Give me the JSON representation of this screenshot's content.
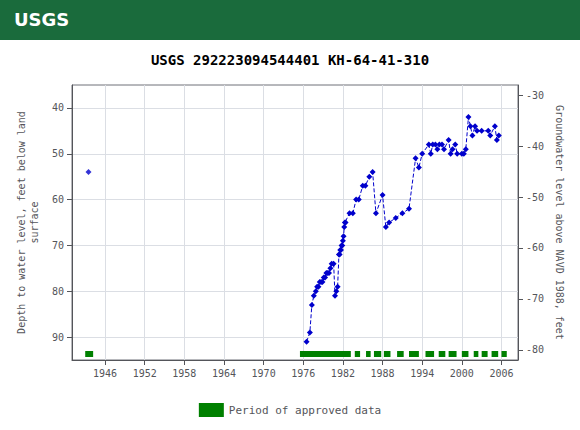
{
  "chart_data": {
    "type": "line",
    "title": "USGS 292223094544401 KH-64-41-310",
    "annotations": [
      "USGS"
    ],
    "ylabel": "Depth to water level, feet below land\nsurface",
    "y2label": "Groundwater level above NAVD 1988, feet",
    "xlim": [
      1941.0,
      2008.5
    ],
    "xticks": [
      1946,
      1952,
      1958,
      1964,
      1970,
      1976,
      1982,
      1988,
      1994,
      2000,
      2006
    ],
    "ylim": [
      95,
      35
    ],
    "yticks": [
      40,
      50,
      60,
      70,
      80,
      90
    ],
    "y2lim": [
      -82,
      -28
    ],
    "y2ticks": [
      -30,
      -40,
      -50,
      -60,
      -70,
      -80
    ],
    "grid": true,
    "legend": "bottom",
    "series": [
      {
        "type": "scatter",
        "color": "#0000cc",
        "marker": "diamond",
        "line_style": "none",
        "x": [
          1943.5
        ],
        "values": [
          54
        ]
      },
      {
        "type": "line",
        "color": "#0000cc",
        "marker": "diamond",
        "line_style": "dashed",
        "x": [
          1976.5,
          1977.0,
          1977.3,
          1977.6,
          1977.9,
          1978.1,
          1978.3,
          1978.5,
          1978.7,
          1978.9,
          1979.1,
          1979.3,
          1979.5,
          1979.7,
          1979.9,
          1980.1,
          1980.3,
          1980.6,
          1980.8,
          1981.0,
          1981.2,
          1981.4,
          1981.5,
          1981.6,
          1981.7,
          1981.8,
          1981.9,
          1982.0,
          1982.1,
          1982.2,
          1982.3,
          1982.4,
          1983.0,
          1983.5,
          1984.0,
          1984.4,
          1985.0,
          1985.4,
          1986.0,
          1986.5,
          1987.0,
          1988.0,
          1988.5,
          1989.0,
          1990.0,
          1991.0,
          1992.0,
          1993.0,
          1993.5,
          1994.0,
          1995.0,
          1995.3,
          1995.6,
          1996.0,
          1996.3,
          1996.6,
          1997.0,
          1997.3,
          1998.0,
          1998.3,
          1998.6,
          1999.0,
          1999.3,
          2000.0,
          2000.3,
          2000.6,
          2001.0,
          2001.3,
          2001.6,
          2002.0,
          2002.3,
          2003.0,
          2004.0,
          2004.3,
          2005.0,
          2005.3,
          2005.6
        ],
        "values": [
          91,
          89,
          83,
          81,
          80,
          79,
          79,
          78,
          78,
          78,
          77,
          77,
          76,
          76,
          76,
          75,
          74,
          74,
          81,
          80,
          79,
          72,
          72,
          71,
          71,
          70,
          70,
          69,
          68,
          66,
          65,
          65,
          63,
          63,
          60,
          60,
          57,
          57,
          55,
          54,
          63,
          59,
          66,
          65,
          64,
          63,
          62,
          51,
          53,
          50,
          48,
          50,
          48,
          48,
          49,
          48,
          48,
          49,
          47,
          50,
          49,
          48,
          50,
          50,
          50,
          49,
          42,
          44,
          46,
          44,
          45,
          45,
          45,
          46,
          44,
          47,
          46
        ]
      },
      {
        "type": "period",
        "name": "Period of approved data",
        "color": "#008000",
        "periods": [
          [
            1943.0,
            1944.2
          ],
          [
            1975.5,
            1983.2
          ],
          [
            1983.8,
            1984.6
          ],
          [
            1985.5,
            1986.2
          ],
          [
            1986.7,
            1987.8
          ],
          [
            1988.2,
            1989.2
          ],
          [
            1990.2,
            1991.2
          ],
          [
            1992.0,
            1993.5
          ],
          [
            1994.5,
            1995.8
          ],
          [
            1996.5,
            1997.5
          ],
          [
            1998.0,
            1999.2
          ],
          [
            2000.0,
            2001.0
          ],
          [
            2001.8,
            2002.5
          ],
          [
            2003.0,
            2003.9
          ],
          [
            2004.5,
            2005.5
          ],
          [
            2006.0,
            2006.8
          ]
        ]
      }
    ]
  }
}
